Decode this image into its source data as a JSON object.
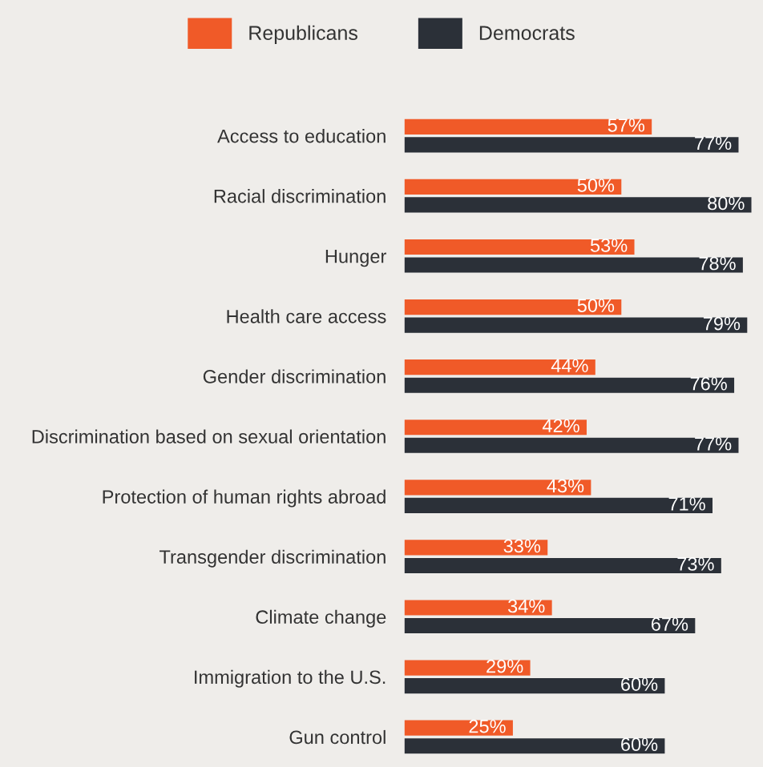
{
  "chart_data": {
    "type": "bar",
    "orientation": "horizontal",
    "legend": "top",
    "tick_labels": "y",
    "categories": [
      "Access to education",
      "Racial discrimination",
      "Hunger",
      "Health care access",
      "Gender discrimination",
      "Discrimination based on sexual orientation",
      "Protection of human rights abroad",
      "Transgender discrimination",
      "Climate change",
      "Immigration to the U.S.",
      "Gun control"
    ],
    "series": [
      {
        "name": "Republicans",
        "color": "#f05a28",
        "values": [
          57,
          50,
          53,
          50,
          44,
          42,
          43,
          33,
          34,
          29,
          25
        ],
        "value_labels": [
          "57%",
          "50%",
          "53%",
          "50%",
          "44%",
          "42%",
          "43%",
          "33%",
          "34%",
          "29%",
          "25%"
        ]
      },
      {
        "name": "Democrats",
        "color": "#2b3038",
        "values": [
          77,
          80,
          78,
          79,
          76,
          77,
          71,
          73,
          67,
          60,
          60
        ],
        "value_labels": [
          "77%",
          "80%",
          "78%",
          "79%",
          "76%",
          "77%",
          "71%",
          "73%",
          "67%",
          "60%",
          "60%"
        ]
      }
    ]
  }
}
